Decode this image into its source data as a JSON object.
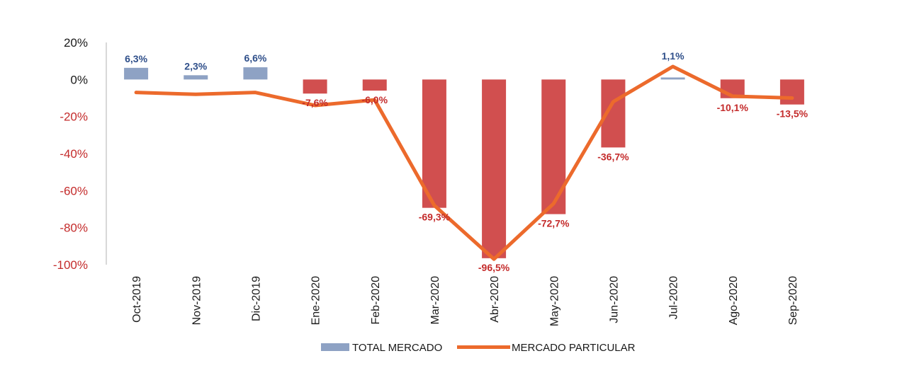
{
  "chart_data": {
    "type": "bar",
    "title": "",
    "xlabel": "",
    "ylabel": "",
    "ylim": [
      -100,
      20
    ],
    "yticks": [
      20,
      0,
      -20,
      -40,
      -60,
      -80,
      -100
    ],
    "ytick_labels": [
      "20%",
      "0%",
      "-20%",
      "-40%",
      "-60%",
      "-80%",
      "-100%"
    ],
    "categories": [
      "Oct-2019",
      "Nov-2019",
      "Dic-2019",
      "Ene-2020",
      "Feb-2020",
      "Mar-2020",
      "Abr-2020",
      "May-2020",
      "Jun-2020",
      "Jul-2020",
      "Ago-2020",
      "Sep-2020"
    ],
    "series": [
      {
        "name": "TOTAL MERCADO",
        "kind": "bar",
        "values": [
          6.3,
          2.3,
          6.6,
          -7.6,
          -6.0,
          -69.3,
          -96.5,
          -72.7,
          -36.7,
          1.1,
          -10.1,
          -13.5
        ],
        "labels": [
          "6,3%",
          "2,3%",
          "6,6%",
          "-7,6%",
          "-6,0%",
          "-69,3%",
          "-96,5%",
          "-72,7%",
          "-36,7%",
          "1,1%",
          "-10,1%",
          "-13,5%"
        ]
      },
      {
        "name": "MERCADO PARTICULAR",
        "kind": "line",
        "values": [
          -7,
          -8,
          -7,
          -14,
          -11,
          -68,
          -97,
          -67,
          -12,
          7,
          -9,
          -10
        ]
      }
    ],
    "legend": "bottom",
    "colors": {
      "bar_positive": "#8ea2c4",
      "bar_negative": "#d14f4f",
      "line": "#ec6a2c",
      "label_positive": "#2f4f8a",
      "label_negative": "#c42b2b",
      "tick_positive": "#1a1a1a",
      "tick_negative": "#c42b2b",
      "axis": "#bfbfbf"
    }
  }
}
